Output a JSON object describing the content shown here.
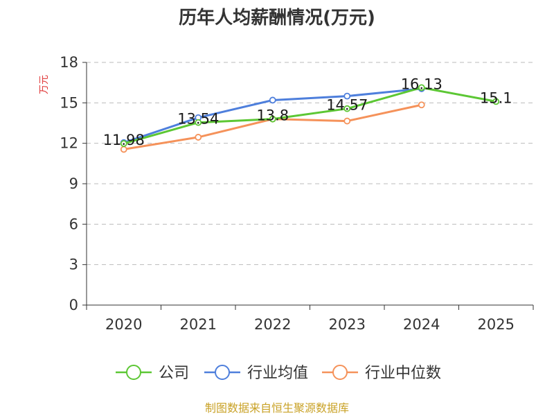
{
  "chart_data": {
    "type": "line",
    "title": "历年人均薪酬情况(万元)",
    "ylabel": "万元",
    "xlabel": "",
    "categories": [
      "2020",
      "2021",
      "2022",
      "2023",
      "2024",
      "2025"
    ],
    "ylim": [
      0,
      18
    ],
    "yticks": [
      0,
      3,
      6,
      9,
      12,
      15,
      18
    ],
    "grid": true,
    "legend_position": "bottom",
    "series": [
      {
        "name": "公司",
        "color": "#5cc734",
        "values": [
          11.98,
          13.54,
          13.8,
          14.57,
          16.13,
          15.1
        ],
        "labels": [
          "11.98",
          "13.54",
          "13.8",
          "14.57",
          "16.13",
          "15.1"
        ]
      },
      {
        "name": "行业均值",
        "color": "#4e7fdc",
        "values": [
          12.05,
          13.9,
          15.2,
          15.5,
          16.05,
          null
        ],
        "labels": []
      },
      {
        "name": "行业中位数",
        "color": "#f5925a",
        "values": [
          11.55,
          12.45,
          13.8,
          13.65,
          14.85,
          null
        ],
        "labels": []
      }
    ],
    "source": "制图数据来自恒生聚源数据库"
  },
  "colors": {
    "title": "#333333",
    "ylabel": "#e03a3a",
    "axis": "#333333",
    "grid": "#bbbbbb",
    "source": "#c9a227"
  }
}
